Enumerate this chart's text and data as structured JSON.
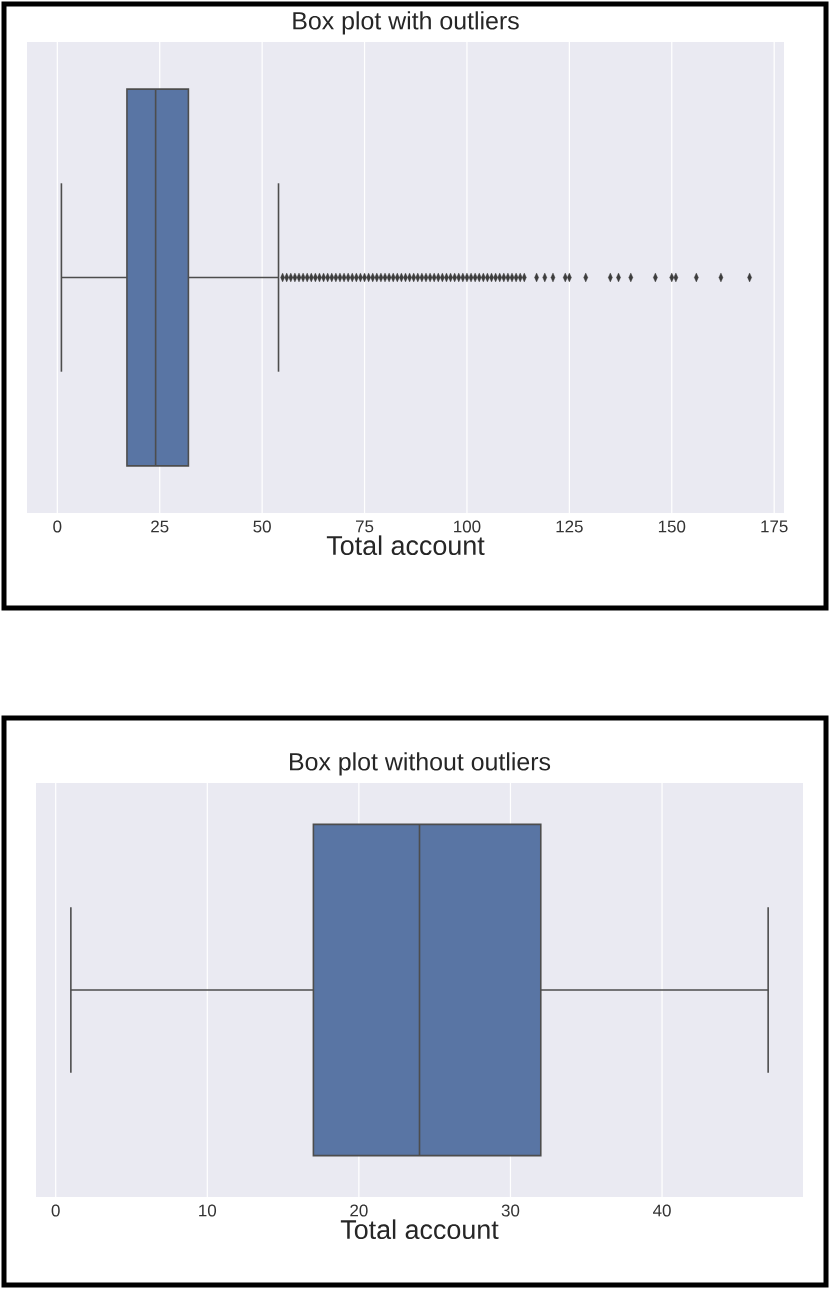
{
  "chart_data": [
    {
      "type": "box",
      "title": "Box plot with outliers",
      "xlabel": "Total account",
      "categories": [
        null
      ],
      "orientation": "horizontal",
      "color": "#5975a4",
      "grid": "x",
      "marker": "diamond",
      "tick_labels": "x",
      "xlim": [
        -7.4,
        177.4
      ],
      "xticks": [
        0,
        25,
        50,
        75,
        100,
        125,
        150,
        175
      ],
      "boxes": [
        {
          "low": 1,
          "q1": 17,
          "median": 24,
          "q3": 32,
          "high": 54,
          "outliers": [
            55,
            56,
            57,
            58,
            59,
            60,
            61,
            62,
            63,
            64,
            65,
            66,
            67,
            68,
            69,
            70,
            71,
            72,
            73,
            74,
            75,
            76,
            77,
            78,
            79,
            80,
            81,
            82,
            83,
            84,
            85,
            86,
            87,
            88,
            89,
            90,
            91,
            92,
            93,
            94,
            95,
            96,
            97,
            98,
            99,
            100,
            101,
            102,
            103,
            104,
            105,
            106,
            107,
            108,
            109,
            110,
            111,
            112,
            113,
            114,
            117,
            119,
            121,
            124,
            125,
            129,
            135,
            137,
            140,
            146,
            150,
            151,
            156,
            162,
            169
          ]
        }
      ]
    },
    {
      "type": "box",
      "title": "Box plot without outliers",
      "xlabel": "Total account",
      "categories": [
        null
      ],
      "orientation": "horizontal",
      "color": "#5975a4",
      "grid": "x",
      "tick_labels": "x",
      "xlim": [
        -1.3,
        49.3
      ],
      "xticks": [
        0,
        10,
        20,
        30,
        40
      ],
      "boxes": [
        {
          "low": 1,
          "q1": 17,
          "median": 24,
          "q3": 32,
          "high": 47
        }
      ]
    }
  ]
}
